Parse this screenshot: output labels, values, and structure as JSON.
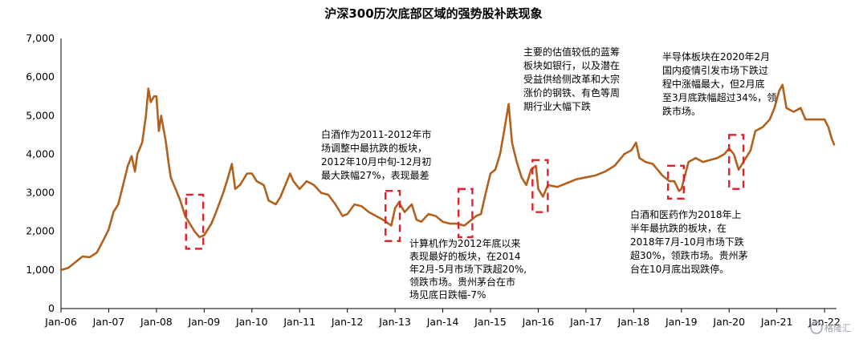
{
  "chart_data": {
    "type": "line",
    "title": "沪深300历次底部区域的强势股补跌现象",
    "xlabel": "",
    "ylabel": "",
    "ylim": [
      0,
      7000
    ],
    "yticks": [
      0,
      1000,
      2000,
      3000,
      4000,
      5000,
      6000,
      7000
    ],
    "ytick_labels": [
      "0",
      "1,000",
      "2,000",
      "3,000",
      "4,000",
      "5,000",
      "6,000",
      "7,000"
    ],
    "xlim": [
      2006.0,
      2022.25
    ],
    "xtick_labels": [
      "Jan-06",
      "Jan-07",
      "Jan-08",
      "Jan-09",
      "Jan-10",
      "Jan-11",
      "Jan-12",
      "Jan-13",
      "Jan-14",
      "Jan-15",
      "Jan-16",
      "Jan-17",
      "Jan-18",
      "Jan-19",
      "Jan-20",
      "Jan-21",
      "Jan-22"
    ],
    "grid": false,
    "legend": "none",
    "series": [
      {
        "color": "#b1611d",
        "points": [
          [
            2006.0,
            1000
          ],
          [
            2006.15,
            1050
          ],
          [
            2006.3,
            1200
          ],
          [
            2006.45,
            1350
          ],
          [
            2006.6,
            1330
          ],
          [
            2006.75,
            1450
          ],
          [
            2006.9,
            1800
          ],
          [
            2007.0,
            2050
          ],
          [
            2007.1,
            2500
          ],
          [
            2007.2,
            2700
          ],
          [
            2007.3,
            3200
          ],
          [
            2007.4,
            3700
          ],
          [
            2007.48,
            3950
          ],
          [
            2007.55,
            3550
          ],
          [
            2007.6,
            4000
          ],
          [
            2007.7,
            4300
          ],
          [
            2007.78,
            5000
          ],
          [
            2007.83,
            5700
          ],
          [
            2007.88,
            5350
          ],
          [
            2007.95,
            5500
          ],
          [
            2008.0,
            5500
          ],
          [
            2008.05,
            4600
          ],
          [
            2008.1,
            5000
          ],
          [
            2008.2,
            4300
          ],
          [
            2008.25,
            3800
          ],
          [
            2008.3,
            3400
          ],
          [
            2008.4,
            3100
          ],
          [
            2008.5,
            2800
          ],
          [
            2008.6,
            2400
          ],
          [
            2008.7,
            2200
          ],
          [
            2008.8,
            2000
          ],
          [
            2008.9,
            1850
          ],
          [
            2009.0,
            1900
          ],
          [
            2009.15,
            2200
          ],
          [
            2009.25,
            2500
          ],
          [
            2009.4,
            3000
          ],
          [
            2009.5,
            3400
          ],
          [
            2009.58,
            3750
          ],
          [
            2009.65,
            3100
          ],
          [
            2009.75,
            3200
          ],
          [
            2009.9,
            3500
          ],
          [
            2010.0,
            3500
          ],
          [
            2010.1,
            3300
          ],
          [
            2010.25,
            3200
          ],
          [
            2010.35,
            2800
          ],
          [
            2010.5,
            2700
          ],
          [
            2010.6,
            2900
          ],
          [
            2010.8,
            3500
          ],
          [
            2010.87,
            3300
          ],
          [
            2011.0,
            3100
          ],
          [
            2011.15,
            3300
          ],
          [
            2011.3,
            3200
          ],
          [
            2011.45,
            3000
          ],
          [
            2011.6,
            2950
          ],
          [
            2011.75,
            2700
          ],
          [
            2011.9,
            2400
          ],
          [
            2012.0,
            2450
          ],
          [
            2012.15,
            2700
          ],
          [
            2012.3,
            2650
          ],
          [
            2012.45,
            2500
          ],
          [
            2012.6,
            2400
          ],
          [
            2012.75,
            2300
          ],
          [
            2012.92,
            2150
          ],
          [
            2013.0,
            2600
          ],
          [
            2013.08,
            2750
          ],
          [
            2013.2,
            2500
          ],
          [
            2013.35,
            2700
          ],
          [
            2013.45,
            2300
          ],
          [
            2013.55,
            2250
          ],
          [
            2013.7,
            2450
          ],
          [
            2013.85,
            2400
          ],
          [
            2014.0,
            2250
          ],
          [
            2014.15,
            2200
          ],
          [
            2014.3,
            2200
          ],
          [
            2014.45,
            2150
          ],
          [
            2014.55,
            2250
          ],
          [
            2014.7,
            2400
          ],
          [
            2014.8,
            2450
          ],
          [
            2014.9,
            3000
          ],
          [
            2015.0,
            3500
          ],
          [
            2015.1,
            3600
          ],
          [
            2015.2,
            4000
          ],
          [
            2015.3,
            4700
          ],
          [
            2015.38,
            5300
          ],
          [
            2015.45,
            4300
          ],
          [
            2015.55,
            3800
          ],
          [
            2015.65,
            3400
          ],
          [
            2015.75,
            3200
          ],
          [
            2015.85,
            3600
          ],
          [
            2015.95,
            3700
          ],
          [
            2016.0,
            3100
          ],
          [
            2016.1,
            2900
          ],
          [
            2016.2,
            3200
          ],
          [
            2016.4,
            3150
          ],
          [
            2016.6,
            3250
          ],
          [
            2016.8,
            3350
          ],
          [
            2017.0,
            3400
          ],
          [
            2017.2,
            3450
          ],
          [
            2017.4,
            3550
          ],
          [
            2017.6,
            3700
          ],
          [
            2017.8,
            4000
          ],
          [
            2017.95,
            4100
          ],
          [
            2018.05,
            4300
          ],
          [
            2018.12,
            3900
          ],
          [
            2018.25,
            3800
          ],
          [
            2018.4,
            3750
          ],
          [
            2018.5,
            3600
          ],
          [
            2018.6,
            3450
          ],
          [
            2018.75,
            3300
          ],
          [
            2018.85,
            3300
          ],
          [
            2018.95,
            3050
          ],
          [
            2019.0,
            3100
          ],
          [
            2019.15,
            3800
          ],
          [
            2019.3,
            3900
          ],
          [
            2019.45,
            3800
          ],
          [
            2019.6,
            3850
          ],
          [
            2019.75,
            3900
          ],
          [
            2019.9,
            4000
          ],
          [
            2020.0,
            4150
          ],
          [
            2020.1,
            4000
          ],
          [
            2020.2,
            3600
          ],
          [
            2020.3,
            3800
          ],
          [
            2020.45,
            4100
          ],
          [
            2020.55,
            4600
          ],
          [
            2020.7,
            4700
          ],
          [
            2020.85,
            4900
          ],
          [
            2020.95,
            5200
          ],
          [
            2021.05,
            5650
          ],
          [
            2021.12,
            5800
          ],
          [
            2021.2,
            5200
          ],
          [
            2021.35,
            5100
          ],
          [
            2021.5,
            5200
          ],
          [
            2021.6,
            4900
          ],
          [
            2021.7,
            4900
          ],
          [
            2021.8,
            4900
          ],
          [
            2021.9,
            4900
          ],
          [
            2022.0,
            4900
          ],
          [
            2022.08,
            4700
          ],
          [
            2022.15,
            4400
          ],
          [
            2022.2,
            4250
          ]
        ]
      }
    ],
    "highlight_boxes": [
      {
        "x0": 2008.62,
        "x1": 2008.98,
        "y0": 1550,
        "y1": 2950
      },
      {
        "x0": 2012.8,
        "x1": 2013.1,
        "y0": 1750,
        "y1": 3050
      },
      {
        "x0": 2014.33,
        "x1": 2014.62,
        "y0": 1850,
        "y1": 3100
      },
      {
        "x0": 2015.88,
        "x1": 2016.2,
        "y0": 2500,
        "y1": 3850
      },
      {
        "x0": 2018.72,
        "x1": 2019.05,
        "y0": 2850,
        "y1": 3700
      },
      {
        "x0": 2020.0,
        "x1": 2020.3,
        "y0": 3100,
        "y1": 4500
      }
    ],
    "annotations": [
      {
        "lines": [
          "白酒作为2011-2012年市",
          "场调整中最抗跌的板块，",
          "2012年10月中旬-12月初",
          "最大跌幅27%，表现最差"
        ]
      },
      {
        "lines": [
          "计算机作为2012年底以来",
          "表现最好的板块，在2014",
          "年2月-5月市场下跌超20%,",
          "领跌市场。贵州茅台在市",
          "场见底日跌幅-7%"
        ]
      },
      {
        "lines": [
          "主要的估值较低的蓝筹",
          "板块如银行，以及潜在",
          "受益供给侧改革和大宗",
          "涨价的钢铁、有色等周",
          "期行业大幅下跌"
        ]
      },
      {
        "lines": [
          "白酒和医药作为2018年上",
          "半年最抗跌的板块，在",
          "2018年7月-10月市场下跌",
          "超30%，领跌市场。贵州茅",
          "台在10月底出现跌停。"
        ]
      },
      {
        "lines": [
          "半导体板块在2020年2月",
          "国内疫情引发市场下跌过",
          "程中涨幅最大，但2月底",
          "至3月底跌幅超过34%，领",
          "跌市场。"
        ]
      }
    ],
    "watermark": "格隆汇"
  }
}
